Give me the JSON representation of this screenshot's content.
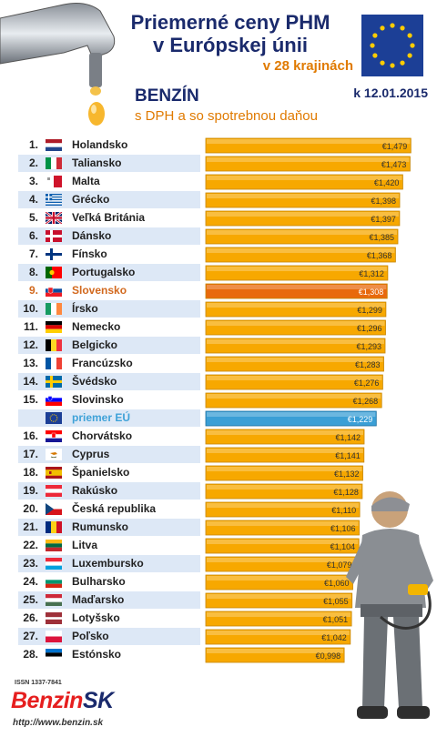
{
  "header": {
    "title_line1": "Priemerné ceny PHM",
    "title_line2": "v Európskej únii",
    "subtitle": "v 28 krajinách",
    "fuel": "BENZÍN",
    "tax_note": "s DPH a so spotrebnou daňou",
    "date": "k 12.01.2015"
  },
  "footer": {
    "issn": "ISSN 1337-7841",
    "brand_a": "Benzin",
    "brand_b": "SK",
    "url": "http://www.benzin.sk"
  },
  "colors": {
    "bar": "#f7a800",
    "highlight": "#e8690c",
    "eu": "#3a9fd6",
    "row_alt": "#dde8f6"
  },
  "chart_data": {
    "type": "bar",
    "orientation": "horizontal",
    "title": "Priemerné ceny PHM v Európskej únii",
    "subtitle": "v 28 krajinách",
    "unit": "€",
    "xlim": [
      0,
      1.48
    ],
    "rows": [
      {
        "rank": "1.",
        "country": "Holandsko",
        "value": 1.479,
        "label": "€1,479",
        "flag": "nl"
      },
      {
        "rank": "2.",
        "country": "Taliansko",
        "value": 1.473,
        "label": "€1,473",
        "flag": "it"
      },
      {
        "rank": "3.",
        "country": "Malta",
        "value": 1.42,
        "label": "€1,420",
        "flag": "mt"
      },
      {
        "rank": "4.",
        "country": "Grécko",
        "value": 1.398,
        "label": "€1,398",
        "flag": "gr"
      },
      {
        "rank": "5.",
        "country": "Veľká Británia",
        "value": 1.397,
        "label": "€1,397",
        "flag": "gb"
      },
      {
        "rank": "6.",
        "country": "Dánsko",
        "value": 1.385,
        "label": "€1,385",
        "flag": "dk"
      },
      {
        "rank": "7.",
        "country": "Fínsko",
        "value": 1.368,
        "label": "€1,368",
        "flag": "fi"
      },
      {
        "rank": "8.",
        "country": "Portugalsko",
        "value": 1.312,
        "label": "€1,312",
        "flag": "pt"
      },
      {
        "rank": "9.",
        "country": "Slovensko",
        "value": 1.308,
        "label": "€1,308",
        "flag": "sk",
        "highlight": true
      },
      {
        "rank": "10.",
        "country": "Írsko",
        "value": 1.299,
        "label": "€1,299",
        "flag": "ie"
      },
      {
        "rank": "11.",
        "country": "Nemecko",
        "value": 1.296,
        "label": "€1,296",
        "flag": "de"
      },
      {
        "rank": "12.",
        "country": "Belgicko",
        "value": 1.293,
        "label": "€1,293",
        "flag": "be"
      },
      {
        "rank": "13.",
        "country": "Francúzsko",
        "value": 1.283,
        "label": "€1,283",
        "flag": "fr"
      },
      {
        "rank": "14.",
        "country": "Švédsko",
        "value": 1.276,
        "label": "€1,276",
        "flag": "se"
      },
      {
        "rank": "15.",
        "country": "Slovinsko",
        "value": 1.268,
        "label": "€1,268",
        "flag": "si"
      },
      {
        "rank": "",
        "country": "priemer EÚ",
        "value": 1.229,
        "label": "€1,229",
        "flag": "eu",
        "eu": true
      },
      {
        "rank": "16.",
        "country": "Chorvátsko",
        "value": 1.142,
        "label": "€1,142",
        "flag": "hr"
      },
      {
        "rank": "17.",
        "country": "Cyprus",
        "value": 1.141,
        "label": "€1,141",
        "flag": "cy"
      },
      {
        "rank": "18.",
        "country": "Španielsko",
        "value": 1.132,
        "label": "€1,132",
        "flag": "es"
      },
      {
        "rank": "19.",
        "country": "Rakúsko",
        "value": 1.128,
        "label": "€1,128",
        "flag": "at"
      },
      {
        "rank": "20.",
        "country": "Česká republika",
        "value": 1.11,
        "label": "€1,110",
        "flag": "cz"
      },
      {
        "rank": "21.",
        "country": "Rumunsko",
        "value": 1.106,
        "label": "€1,106",
        "flag": "ro"
      },
      {
        "rank": "22.",
        "country": "Litva",
        "value": 1.104,
        "label": "€1,104",
        "flag": "lt"
      },
      {
        "rank": "23.",
        "country": "Luxembursko",
        "value": 1.079,
        "label": "€1,079",
        "flag": "lu"
      },
      {
        "rank": "24.",
        "country": "Bulharsko",
        "value": 1.06,
        "label": "€1,060",
        "flag": "bg"
      },
      {
        "rank": "25.",
        "country": "Maďarsko",
        "value": 1.055,
        "label": "€1,055",
        "flag": "hu"
      },
      {
        "rank": "26.",
        "country": "Lotyšsko",
        "value": 1.051,
        "label": "€1,051",
        "flag": "lv"
      },
      {
        "rank": "27.",
        "country": "Poľsko",
        "value": 1.042,
        "label": "€1,042",
        "flag": "pl"
      },
      {
        "rank": "28.",
        "country": "Estónsko",
        "value": 0.998,
        "label": "€0,998",
        "flag": "ee"
      }
    ]
  }
}
